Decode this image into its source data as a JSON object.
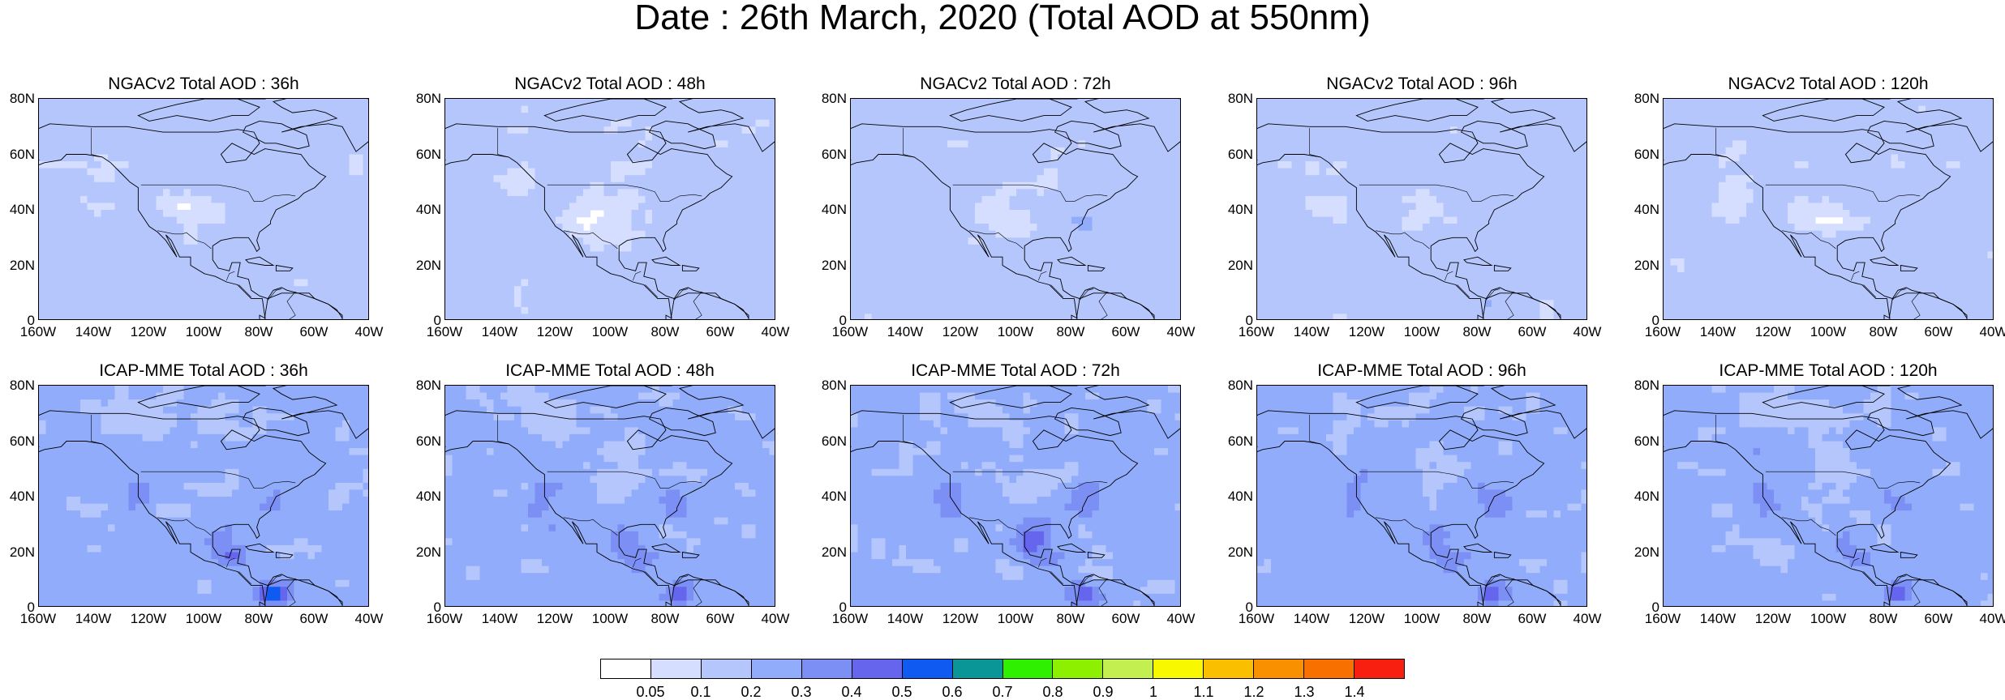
{
  "title": "Date : 26th March, 2020 (Total AOD at 550nm)",
  "panels": [
    {
      "row": 0,
      "col": 0,
      "title": "NGACv2 Total AOD : 36h",
      "model": "NGACv2",
      "lead": "36h"
    },
    {
      "row": 0,
      "col": 1,
      "title": "NGACv2 Total AOD : 48h",
      "model": "NGACv2",
      "lead": "48h"
    },
    {
      "row": 0,
      "col": 2,
      "title": "NGACv2 Total AOD : 72h",
      "model": "NGACv2",
      "lead": "72h"
    },
    {
      "row": 0,
      "col": 3,
      "title": "NGACv2 Total AOD : 96h",
      "model": "NGACv2",
      "lead": "96h"
    },
    {
      "row": 0,
      "col": 4,
      "title": "NGACv2 Total AOD : 120h",
      "model": "NGACv2",
      "lead": "120h"
    },
    {
      "row": 1,
      "col": 0,
      "title": "ICAP-MME Total AOD : 36h",
      "model": "ICAP-MME",
      "lead": "36h"
    },
    {
      "row": 1,
      "col": 1,
      "title": "ICAP-MME Total AOD : 48h",
      "model": "ICAP-MME",
      "lead": "48h"
    },
    {
      "row": 1,
      "col": 2,
      "title": "ICAP-MME Total AOD : 72h",
      "model": "ICAP-MME",
      "lead": "72h"
    },
    {
      "row": 1,
      "col": 3,
      "title": "ICAP-MME Total AOD : 96h",
      "model": "ICAP-MME",
      "lead": "96h"
    },
    {
      "row": 1,
      "col": 4,
      "title": "ICAP-MME Total AOD : 120h",
      "model": "ICAP-MME",
      "lead": "120h"
    }
  ],
  "lat_ticks": [
    "80N",
    "60N",
    "40N",
    "20N",
    "0"
  ],
  "lon_ticks": [
    "160W",
    "140W",
    "120W",
    "100W",
    "80W",
    "60W",
    "40W"
  ],
  "map_extent": {
    "lon": [
      -160,
      -40
    ],
    "lat": [
      0,
      80
    ]
  },
  "colorbar": {
    "labels": [
      "0.05",
      "0.1",
      "0.2",
      "0.3",
      "0.4",
      "0.5",
      "0.6",
      "0.7",
      "0.8",
      "0.9",
      "1",
      "1.1",
      "1.2",
      "1.3",
      "1.4"
    ],
    "colors": [
      "#ffffff",
      "#d5defe",
      "#b4c6fc",
      "#91acfa",
      "#7c8ff5",
      "#6565ee",
      "#0f5af0",
      "#0a9696",
      "#2ef000",
      "#8cf000",
      "#c3f050",
      "#f8f800",
      "#fac000",
      "#f89000",
      "#f87000",
      "#f81e10"
    ]
  }
}
